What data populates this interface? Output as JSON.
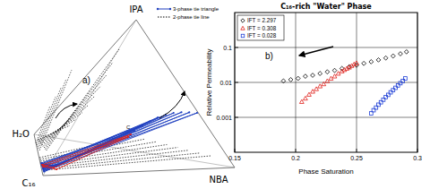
{
  "chart_data": {
    "type": "scatter",
    "title": "C₁₆-rich \"Water\" Phase",
    "panel_label": "b)",
    "x_label": "Phase Saturation",
    "y_label": "Relative Permeability",
    "xlim": [
      0.15,
      0.3
    ],
    "xticks": [
      0.15,
      0.2,
      0.25,
      0.3
    ],
    "ylim": [
      0.0001,
      1
    ],
    "yticks": [
      0.001,
      0.01,
      0.1
    ],
    "log": "y",
    "grid": true,
    "legend": "top-left",
    "series": [
      {
        "name": "IFT = 2.297",
        "color": "#000000",
        "marker": "diamond",
        "x": [
          0.19,
          0.196,
          0.202,
          0.208,
          0.214,
          0.22,
          0.226,
          0.232,
          0.238,
          0.244,
          0.25,
          0.256,
          0.262,
          0.268,
          0.274,
          0.28,
          0.286,
          0.291
        ],
        "values": [
          0.011,
          0.012,
          0.013,
          0.015,
          0.016,
          0.018,
          0.02,
          0.022,
          0.025,
          0.028,
          0.031,
          0.035,
          0.039,
          0.044,
          0.05,
          0.057,
          0.066,
          0.075
        ]
      },
      {
        "name": "IFT = 0.308",
        "color": "#e0201a",
        "marker": "triangle",
        "x": [
          0.205,
          0.208,
          0.211,
          0.214,
          0.217,
          0.22,
          0.223,
          0.226,
          0.229,
          0.232,
          0.235,
          0.238,
          0.24,
          0.242,
          0.244,
          0.246,
          0.248,
          0.25
        ],
        "values": [
          0.0028,
          0.0035,
          0.0045,
          0.0055,
          0.0065,
          0.0078,
          0.009,
          0.011,
          0.013,
          0.015,
          0.018,
          0.021,
          0.023,
          0.025,
          0.027,
          0.03,
          0.033,
          0.036
        ]
      },
      {
        "name": "IFT = 0.028",
        "color": "#1f3fd6",
        "marker": "square",
        "x": [
          0.262,
          0.264,
          0.266,
          0.268,
          0.27,
          0.272,
          0.274,
          0.276,
          0.278,
          0.28,
          0.282,
          0.284,
          0.286,
          0.288,
          0.29
        ],
        "values": [
          0.0013,
          0.0016,
          0.0019,
          0.0023,
          0.0027,
          0.0032,
          0.0038,
          0.0044,
          0.0052,
          0.006,
          0.007,
          0.0082,
          0.0095,
          0.011,
          0.013
        ]
      }
    ]
  },
  "diagram": {
    "label": "a)",
    "vertices": [
      "IPA",
      "H₂O",
      "NBA",
      "C₁₆"
    ],
    "point_label": "C",
    "legend": [
      {
        "name": "3-phase tie triangle",
        "color": "#1f3fbf",
        "line_style": "solid",
        "marker": "circle"
      },
      {
        "name": "2-phase tie line",
        "color": "#000000",
        "line_style": "dotted"
      }
    ]
  }
}
